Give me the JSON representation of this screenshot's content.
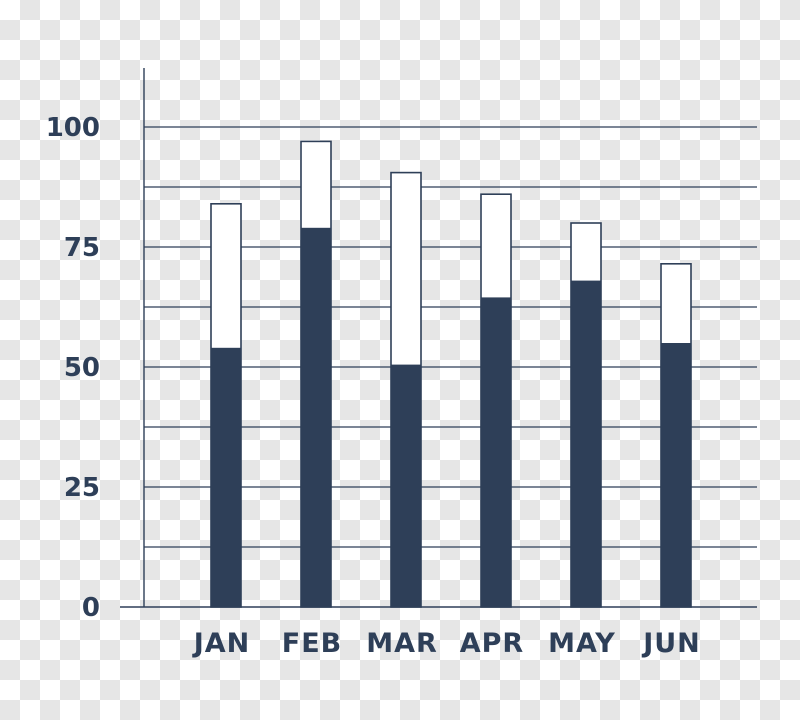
{
  "colors": {
    "ink": "#2e3f58",
    "grid": "#2e3f58"
  },
  "chart_data": {
    "type": "bar",
    "categories": [
      "JAN",
      "FEB",
      "MAR",
      "APR",
      "MAY",
      "JUN"
    ],
    "series": [
      {
        "values": [
          54,
          79,
          50.5,
          64.5,
          68,
          55
        ]
      },
      {
        "values": [
          84,
          97,
          90.5,
          86,
          80,
          71.5
        ]
      }
    ],
    "ylim": [
      0,
      100
    ],
    "yticks": [
      "0",
      "25",
      "50",
      "75",
      "100"
    ],
    "ytick_values": [
      0,
      25,
      50,
      75,
      100
    ],
    "gridlines": [
      12.5,
      25,
      37.5,
      50,
      62.5,
      75,
      87.5,
      100
    ],
    "grid": true,
    "title": "",
    "xlabel": "",
    "ylabel": ""
  }
}
